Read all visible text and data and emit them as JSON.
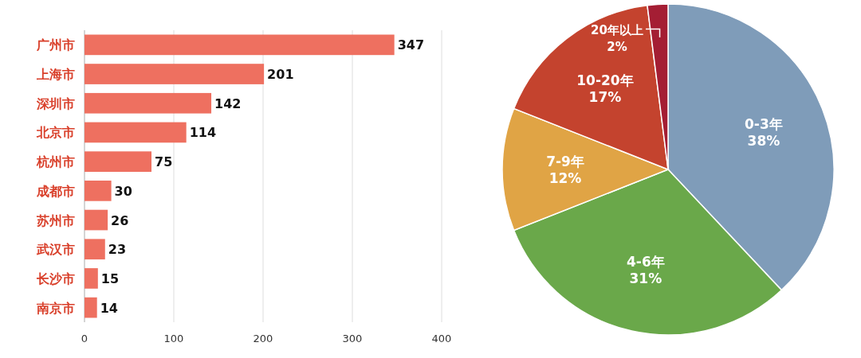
{
  "chart_data": [
    {
      "type": "bar",
      "orientation": "horizontal",
      "categories": [
        "广州市",
        "上海市",
        "深圳市",
        "北京市",
        "杭州市",
        "成都市",
        "苏州市",
        "武汉市",
        "长沙市",
        "南京市"
      ],
      "values": [
        347,
        201,
        142,
        114,
        75,
        30,
        26,
        23,
        15,
        14
      ],
      "color": "#ee7060",
      "xlim": [
        0,
        400
      ],
      "xticks": [
        0,
        100,
        200,
        300,
        400
      ],
      "grid": "x",
      "data_labels": true
    },
    {
      "type": "pie",
      "categories": [
        "0-3年",
        "4-6年",
        "7-9年",
        "10-20年",
        "20年以上"
      ],
      "values": [
        38,
        31,
        12,
        17,
        2
      ],
      "value_labels": [
        "38%",
        "31%",
        "12%",
        "17%",
        "2%"
      ],
      "colors": [
        "#7f9cb9",
        "#6aa84a",
        "#e0a445",
        "#c4432e",
        "#a41e34"
      ]
    }
  ]
}
